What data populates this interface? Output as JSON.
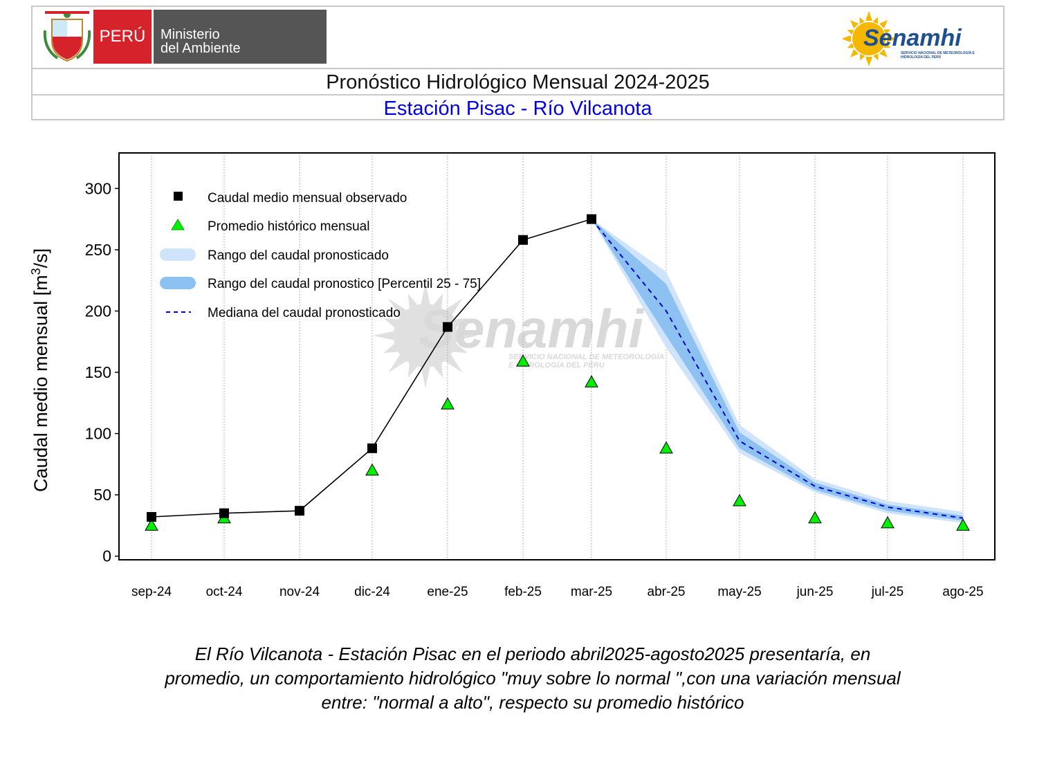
{
  "header": {
    "peru_label": "PERÚ",
    "ministry_line1": "Ministerio",
    "ministry_line2": "del Ambiente",
    "senamhi_logo_text": "Senamhi",
    "senamhi_logo_subtext": "SERVICIO NACIONAL DE METEOROLOGÍA E HIDROLOGÍA DEL PERÚ",
    "title": "Pronóstico Hidrológico Mensual 2024-2025",
    "subtitle": "Estación Pisac - Río Vilcanota"
  },
  "watermark": {
    "text": "Senamhi",
    "subtext_line1": "SERVICIO NACIONAL DE METEOROLOGÍA",
    "subtext_line2": "E HIDROLOGÍA DEL PERU"
  },
  "chart_data": {
    "type": "line",
    "ylabel": "Caudal medio mensual  [m³/s]",
    "ylabel_main": "Caudal medio mensual",
    "ylabel_unit": "[m³/s]",
    "ylim": [
      -3,
      329
    ],
    "yticks": [
      0,
      50,
      100,
      150,
      200,
      250,
      300
    ],
    "categories": [
      "sep-24",
      "oct-24",
      "nov-24",
      "dic-24",
      "ene-25",
      "feb-25",
      "mar-25",
      "abr-25",
      "may-25",
      "jun-25",
      "jul-25",
      "ago-25"
    ],
    "grid": "vertical dotted",
    "legend_position": "top-left",
    "series": [
      {
        "name": "Caudal medio mensual observado",
        "marker": "square",
        "color": "#000000",
        "values": [
          32,
          35,
          37,
          88,
          187,
          258,
          275,
          null,
          null,
          null,
          null,
          null
        ]
      },
      {
        "name": "Promedio histórico mensual",
        "marker": "triangle",
        "color": "#00ee00",
        "values": [
          25,
          31,
          null,
          70,
          124,
          159,
          142,
          88,
          45,
          31,
          27,
          25
        ]
      },
      {
        "name": "Rango del caudal pronosticado",
        "kind": "band",
        "color": "#cfe4fb",
        "lower": [
          null,
          null,
          null,
          null,
          null,
          null,
          275,
          170,
          84,
          52,
          35,
          27
        ],
        "upper": [
          null,
          null,
          null,
          null,
          null,
          null,
          275,
          232,
          107,
          63,
          45,
          36
        ]
      },
      {
        "name": "Rango del caudal pronostico [Percentil 25 - 75]",
        "kind": "band",
        "color": "#8dc1f1",
        "lower": [
          null,
          null,
          null,
          null,
          null,
          null,
          275,
          180,
          88,
          54,
          37,
          29
        ],
        "upper": [
          null,
          null,
          null,
          null,
          null,
          null,
          275,
          222,
          101,
          60,
          42,
          33
        ]
      },
      {
        "name": "Mediana del caudal pronosticado",
        "kind": "dashed-line",
        "color": "#0000cc",
        "values": [
          null,
          null,
          null,
          null,
          null,
          null,
          275,
          200,
          94,
          57,
          40,
          31
        ]
      }
    ]
  },
  "caption": {
    "line1": "El Río Vilcanota - Estación Pisac en el periodo abril2025-agosto2025 presentaría, en",
    "line2": "promedio, un comportamiento hidrológico \"muy sobre lo normal \",con una variación mensual",
    "line3": "entre: \"normal a alto\", respecto su promedio histórico"
  }
}
